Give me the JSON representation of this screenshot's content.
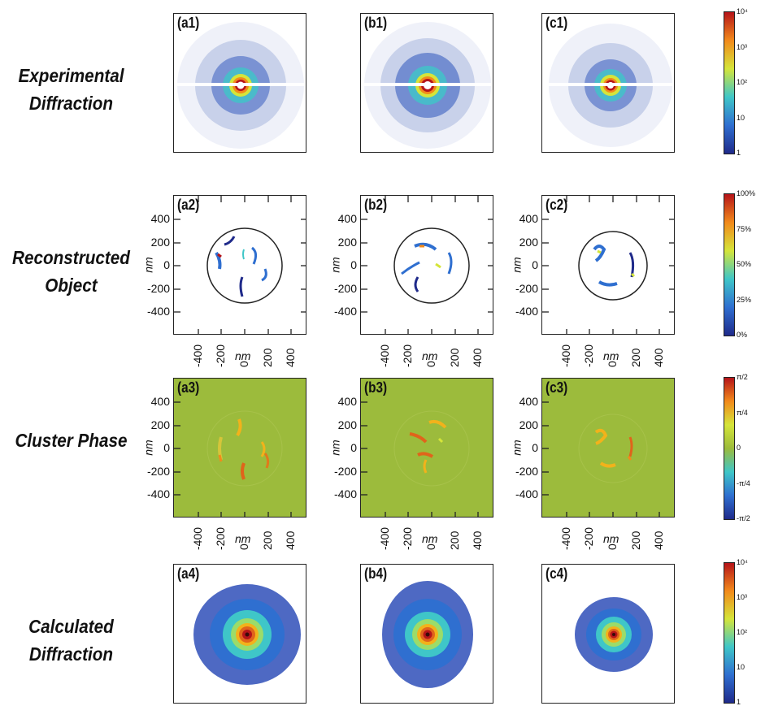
{
  "rows": [
    {
      "line1": "Experimental",
      "line2": "Diffraction"
    },
    {
      "line1": "Reconstructed",
      "line2": "Object"
    },
    {
      "line1": "Cluster Phase",
      "line2": ""
    },
    {
      "line1": "Calculated",
      "line2": "Diffraction"
    }
  ],
  "panels": {
    "a1": "(a1)",
    "b1": "(b1)",
    "c1": "(c1)",
    "a2": "(a2)",
    "b2": "(b2)",
    "c2": "(c2)",
    "a3": "(a3)",
    "b3": "(b3)",
    "c3": "(c3)",
    "a4": "(a4)",
    "b4": "(b4)",
    "c4": "(c4)"
  },
  "axis": {
    "name": "nm",
    "ticks": [
      "400",
      "200",
      "0",
      "-200",
      "-400"
    ],
    "xticks": [
      "-400",
      "-200",
      "0",
      "200",
      "400"
    ]
  },
  "colorbars": {
    "intensity": [
      "10⁴",
      "10³",
      "10²",
      "10",
      "1"
    ],
    "amplitude": [
      "100%",
      "75%",
      "50%",
      "25%",
      "0%"
    ],
    "phase": [
      "π/2",
      "π/4",
      "0",
      "-π/4",
      "-π/2"
    ]
  },
  "colors": {
    "phase_background": "#9cbb3c",
    "colormap": [
      "#1f2a8a",
      "#2f6fd0",
      "#3fc6c8",
      "#d5e53a",
      "#f28a1b",
      "#b5141a"
    ]
  }
}
